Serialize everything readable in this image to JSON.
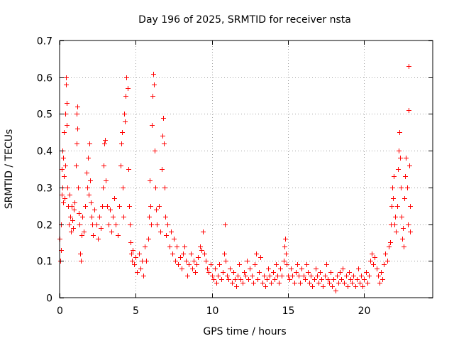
{
  "chart_data": {
    "type": "scatter",
    "title": "Day 196 of 2025, SRMTID for receiver nsta",
    "xlabel": "GPS time / hours",
    "ylabel": "SRMTID / TECUs",
    "xlim": [
      0,
      24.5
    ],
    "ylim": [
      0,
      0.7
    ],
    "x_ticks": [
      0,
      5,
      10,
      15,
      20
    ],
    "y_ticks": [
      0,
      0.1,
      0.2,
      0.3,
      0.4,
      0.5,
      0.6,
      0.7
    ],
    "x_tick_labels": [
      "0",
      "5",
      "10",
      "15",
      "20"
    ],
    "y_tick_labels": [
      "0",
      "0.1",
      "0.2",
      "0.3",
      "0.4",
      "0.5",
      "0.6",
      "0.7"
    ],
    "grid": true,
    "marker": "plus",
    "series": [
      {
        "name": "nsta",
        "color": "#ff0000",
        "points": [
          [
            0.02,
            0.16
          ],
          [
            0.05,
            0.1
          ],
          [
            0.08,
            0.13
          ],
          [
            0.1,
            0.2
          ],
          [
            0.12,
            0.28
          ],
          [
            0.15,
            0.35
          ],
          [
            0.18,
            0.3
          ],
          [
            0.2,
            0.4
          ],
          [
            0.22,
            0.26
          ],
          [
            0.25,
            0.38
          ],
          [
            0.28,
            0.33
          ],
          [
            0.3,
            0.45
          ],
          [
            0.32,
            0.27
          ],
          [
            0.35,
            0.36
          ],
          [
            0.38,
            0.5
          ],
          [
            0.4,
            0.58
          ],
          [
            0.42,
            0.6
          ],
          [
            0.45,
            0.53
          ],
          [
            0.48,
            0.47
          ],
          [
            0.5,
            0.3
          ],
          [
            0.55,
            0.25
          ],
          [
            0.6,
            0.2
          ],
          [
            0.65,
            0.28
          ],
          [
            0.7,
            0.22
          ],
          [
            0.75,
            0.18
          ],
          [
            0.8,
            0.25
          ],
          [
            0.85,
            0.21
          ],
          [
            0.9,
            0.19
          ],
          [
            0.95,
            0.24
          ],
          [
            1.0,
            0.26
          ],
          [
            1.05,
            0.36
          ],
          [
            1.1,
            0.42
          ],
          [
            1.12,
            0.5
          ],
          [
            1.15,
            0.52
          ],
          [
            1.18,
            0.46
          ],
          [
            1.2,
            0.3
          ],
          [
            1.25,
            0.23
          ],
          [
            1.3,
            0.2
          ],
          [
            1.35,
            0.12
          ],
          [
            1.4,
            0.1
          ],
          [
            1.45,
            0.17
          ],
          [
            1.5,
            0.22
          ],
          [
            1.6,
            0.18
          ],
          [
            1.7,
            0.25
          ],
          [
            1.75,
            0.34
          ],
          [
            1.8,
            0.3
          ],
          [
            1.85,
            0.38
          ],
          [
            1.9,
            0.28
          ],
          [
            1.95,
            0.42
          ],
          [
            2.0,
            0.32
          ],
          [
            2.05,
            0.26
          ],
          [
            2.1,
            0.22
          ],
          [
            2.15,
            0.2
          ],
          [
            2.2,
            0.17
          ],
          [
            2.3,
            0.24
          ],
          [
            2.4,
            0.2
          ],
          [
            2.5,
            0.16
          ],
          [
            2.6,
            0.22
          ],
          [
            2.7,
            0.19
          ],
          [
            2.8,
            0.25
          ],
          [
            2.85,
            0.3
          ],
          [
            2.9,
            0.36
          ],
          [
            2.95,
            0.42
          ],
          [
            3.0,
            0.43
          ],
          [
            3.05,
            0.32
          ],
          [
            3.1,
            0.25
          ],
          [
            3.2,
            0.2
          ],
          [
            3.3,
            0.24
          ],
          [
            3.4,
            0.18
          ],
          [
            3.5,
            0.22
          ],
          [
            3.6,
            0.27
          ],
          [
            3.7,
            0.2
          ],
          [
            3.8,
            0.17
          ],
          [
            3.9,
            0.25
          ],
          [
            4.0,
            0.36
          ],
          [
            4.05,
            0.42
          ],
          [
            4.1,
            0.45
          ],
          [
            4.15,
            0.3
          ],
          [
            4.2,
            0.22
          ],
          [
            4.25,
            0.5
          ],
          [
            4.3,
            0.48
          ],
          [
            4.35,
            0.55
          ],
          [
            4.4,
            0.6
          ],
          [
            4.45,
            0.57
          ],
          [
            4.5,
            0.35
          ],
          [
            4.55,
            0.25
          ],
          [
            4.6,
            0.2
          ],
          [
            4.65,
            0.15
          ],
          [
            4.7,
            0.12
          ],
          [
            4.75,
            0.1
          ],
          [
            4.8,
            0.13
          ],
          [
            4.9,
            0.09
          ],
          [
            5.0,
            0.11
          ],
          [
            5.1,
            0.07
          ],
          [
            5.2,
            0.12
          ],
          [
            5.3,
            0.08
          ],
          [
            5.4,
            0.1
          ],
          [
            5.5,
            0.06
          ],
          [
            5.6,
            0.14
          ],
          [
            5.7,
            0.1
          ],
          [
            5.8,
            0.16
          ],
          [
            5.85,
            0.22
          ],
          [
            5.9,
            0.32
          ],
          [
            5.95,
            0.25
          ],
          [
            6.0,
            0.2
          ],
          [
            6.05,
            0.47
          ],
          [
            6.1,
            0.55
          ],
          [
            6.15,
            0.61
          ],
          [
            6.2,
            0.58
          ],
          [
            6.25,
            0.4
          ],
          [
            6.3,
            0.3
          ],
          [
            6.35,
            0.24
          ],
          [
            6.4,
            0.2
          ],
          [
            6.5,
            0.25
          ],
          [
            6.6,
            0.18
          ],
          [
            6.7,
            0.35
          ],
          [
            6.75,
            0.44
          ],
          [
            6.8,
            0.49
          ],
          [
            6.85,
            0.42
          ],
          [
            6.9,
            0.3
          ],
          [
            6.95,
            0.22
          ],
          [
            7.0,
            0.17
          ],
          [
            7.1,
            0.2
          ],
          [
            7.2,
            0.14
          ],
          [
            7.3,
            0.18
          ],
          [
            7.4,
            0.12
          ],
          [
            7.5,
            0.16
          ],
          [
            7.6,
            0.1
          ],
          [
            7.7,
            0.14
          ],
          [
            7.8,
            0.09
          ],
          [
            7.9,
            0.11
          ],
          [
            8.0,
            0.08
          ],
          [
            8.1,
            0.12
          ],
          [
            8.2,
            0.14
          ],
          [
            8.3,
            0.1
          ],
          [
            8.4,
            0.06
          ],
          [
            8.5,
            0.09
          ],
          [
            8.6,
            0.12
          ],
          [
            8.7,
            0.08
          ],
          [
            8.8,
            0.1
          ],
          [
            8.9,
            0.07
          ],
          [
            9.0,
            0.09
          ],
          [
            9.1,
            0.11
          ],
          [
            9.2,
            0.14
          ],
          [
            9.3,
            0.13
          ],
          [
            9.4,
            0.18
          ],
          [
            9.5,
            0.12
          ],
          [
            9.6,
            0.1
          ],
          [
            9.7,
            0.08
          ],
          [
            9.8,
            0.07
          ],
          [
            9.9,
            0.09
          ],
          [
            10.0,
            0.06
          ],
          [
            10.1,
            0.05
          ],
          [
            10.2,
            0.08
          ],
          [
            10.3,
            0.04
          ],
          [
            10.4,
            0.06
          ],
          [
            10.5,
            0.09
          ],
          [
            10.6,
            0.05
          ],
          [
            10.7,
            0.07
          ],
          [
            10.8,
            0.12
          ],
          [
            10.85,
            0.2
          ],
          [
            10.9,
            0.1
          ],
          [
            11.0,
            0.06
          ],
          [
            11.1,
            0.05
          ],
          [
            11.2,
            0.08
          ],
          [
            11.3,
            0.04
          ],
          [
            11.4,
            0.07
          ],
          [
            11.5,
            0.05
          ],
          [
            11.6,
            0.03
          ],
          [
            11.7,
            0.06
          ],
          [
            11.8,
            0.09
          ],
          [
            11.9,
            0.05
          ],
          [
            12.0,
            0.04
          ],
          [
            12.1,
            0.07
          ],
          [
            12.2,
            0.06
          ],
          [
            12.3,
            0.1
          ],
          [
            12.4,
            0.05
          ],
          [
            12.5,
            0.08
          ],
          [
            12.6,
            0.06
          ],
          [
            12.7,
            0.04
          ],
          [
            12.8,
            0.09
          ],
          [
            12.9,
            0.12
          ],
          [
            13.0,
            0.05
          ],
          [
            13.1,
            0.07
          ],
          [
            13.2,
            0.11
          ],
          [
            13.3,
            0.04
          ],
          [
            13.4,
            0.06
          ],
          [
            13.5,
            0.03
          ],
          [
            13.6,
            0.05
          ],
          [
            13.7,
            0.08
          ],
          [
            13.8,
            0.06
          ],
          [
            13.9,
            0.04
          ],
          [
            14.0,
            0.07
          ],
          [
            14.1,
            0.05
          ],
          [
            14.2,
            0.09
          ],
          [
            14.3,
            0.06
          ],
          [
            14.4,
            0.04
          ],
          [
            14.5,
            0.08
          ],
          [
            14.6,
            0.06
          ],
          [
            14.7,
            0.1
          ],
          [
            14.75,
            0.14
          ],
          [
            14.8,
            0.16
          ],
          [
            14.85,
            0.12
          ],
          [
            14.9,
            0.09
          ],
          [
            15.0,
            0.06
          ],
          [
            15.1,
            0.05
          ],
          [
            15.2,
            0.08
          ],
          [
            15.3,
            0.06
          ],
          [
            15.4,
            0.04
          ],
          [
            15.5,
            0.07
          ],
          [
            15.6,
            0.09
          ],
          [
            15.7,
            0.06
          ],
          [
            15.8,
            0.04
          ],
          [
            15.9,
            0.08
          ],
          [
            16.0,
            0.06
          ],
          [
            16.1,
            0.05
          ],
          [
            16.2,
            0.09
          ],
          [
            16.3,
            0.07
          ],
          [
            16.4,
            0.04
          ],
          [
            16.5,
            0.06
          ],
          [
            16.6,
            0.03
          ],
          [
            16.7,
            0.05
          ],
          [
            16.8,
            0.08
          ],
          [
            16.9,
            0.06
          ],
          [
            17.0,
            0.04
          ],
          [
            17.1,
            0.07
          ],
          [
            17.2,
            0.05
          ],
          [
            17.3,
            0.03
          ],
          [
            17.4,
            0.06
          ],
          [
            17.5,
            0.09
          ],
          [
            17.6,
            0.05
          ],
          [
            17.7,
            0.04
          ],
          [
            17.8,
            0.07
          ],
          [
            17.9,
            0.03
          ],
          [
            18.0,
            0.05
          ],
          [
            18.1,
            0.02
          ],
          [
            18.2,
            0.06
          ],
          [
            18.3,
            0.04
          ],
          [
            18.4,
            0.07
          ],
          [
            18.5,
            0.05
          ],
          [
            18.6,
            0.08
          ],
          [
            18.7,
            0.04
          ],
          [
            18.8,
            0.06
          ],
          [
            18.9,
            0.03
          ],
          [
            19.0,
            0.07
          ],
          [
            19.1,
            0.05
          ],
          [
            19.2,
            0.04
          ],
          [
            19.3,
            0.06
          ],
          [
            19.4,
            0.03
          ],
          [
            19.5,
            0.05
          ],
          [
            19.6,
            0.08
          ],
          [
            19.7,
            0.04
          ],
          [
            19.8,
            0.06
          ],
          [
            19.9,
            0.03
          ],
          [
            20.0,
            0.05
          ],
          [
            20.1,
            0.07
          ],
          [
            20.2,
            0.04
          ],
          [
            20.3,
            0.06
          ],
          [
            20.4,
            0.1
          ],
          [
            20.5,
            0.12
          ],
          [
            20.6,
            0.09
          ],
          [
            20.7,
            0.11
          ],
          [
            20.8,
            0.08
          ],
          [
            20.9,
            0.06
          ],
          [
            21.0,
            0.04
          ],
          [
            21.1,
            0.07
          ],
          [
            21.2,
            0.05
          ],
          [
            21.3,
            0.09
          ],
          [
            21.4,
            0.12
          ],
          [
            21.5,
            0.1
          ],
          [
            21.6,
            0.14
          ],
          [
            21.7,
            0.15
          ],
          [
            21.75,
            0.2
          ],
          [
            21.8,
            0.25
          ],
          [
            21.85,
            0.3
          ],
          [
            21.9,
            0.27
          ],
          [
            21.95,
            0.33
          ],
          [
            22.0,
            0.2
          ],
          [
            22.05,
            0.22
          ],
          [
            22.1,
            0.18
          ],
          [
            22.15,
            0.25
          ],
          [
            22.2,
            0.35
          ],
          [
            22.25,
            0.4
          ],
          [
            22.3,
            0.45
          ],
          [
            22.35,
            0.38
          ],
          [
            22.4,
            0.3
          ],
          [
            22.45,
            0.22
          ],
          [
            22.5,
            0.16
          ],
          [
            22.55,
            0.19
          ],
          [
            22.6,
            0.14
          ],
          [
            22.65,
            0.27
          ],
          [
            22.7,
            0.33
          ],
          [
            22.75,
            0.38
          ],
          [
            22.8,
            0.3
          ],
          [
            22.85,
            0.2
          ],
          [
            22.9,
            0.63
          ],
          [
            22.92,
            0.51
          ],
          [
            22.95,
            0.36
          ],
          [
            23.0,
            0.25
          ],
          [
            23.02,
            0.18
          ]
        ]
      }
    ]
  }
}
